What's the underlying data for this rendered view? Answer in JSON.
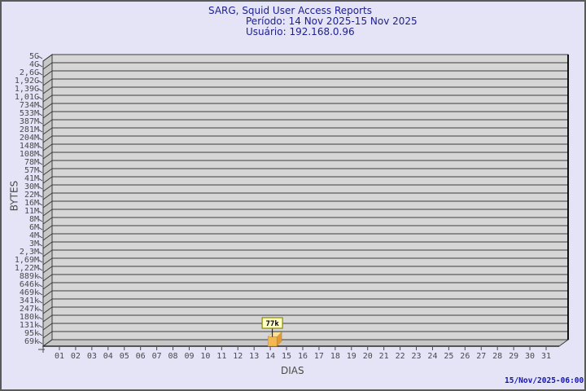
{
  "header": {
    "title": "SARG, Squid User Access Reports",
    "period_line": "Período: 14 Nov 2025-15 Nov 2025",
    "user_line": "Usuário: 192.168.0.96"
  },
  "footer": {
    "timestamp": "15/Nov/2025-06:00"
  },
  "chart_data": {
    "type": "bar",
    "title": "SARG, Squid User Access Reports",
    "subtitle": "Período: 14 Nov 2025-15 Nov 2025 | Usuário: 192.168.0.96",
    "xlabel": "DIAS",
    "ylabel": "BYTES",
    "x_categories": [
      "01",
      "02",
      "03",
      "04",
      "05",
      "06",
      "07",
      "08",
      "09",
      "10",
      "11",
      "12",
      "13",
      "14",
      "15",
      "16",
      "17",
      "18",
      "19",
      "20",
      "21",
      "22",
      "23",
      "24",
      "25",
      "26",
      "27",
      "28",
      "29",
      "30",
      "31"
    ],
    "y_scale": "log",
    "y_min_value": 69000,
    "y_max_value": 5000000000,
    "y_tick_labels": [
      "5G",
      "4G",
      "2,6G",
      "1,92G",
      "1,39G",
      "1,01G",
      "734M",
      "533M",
      "387M",
      "281M",
      "204M",
      "148M",
      "108M",
      "78M",
      "57M",
      "41M",
      "30M",
      "22M",
      "16M",
      "11M",
      "8M",
      "6M",
      "4M",
      "3M",
      "2,3M",
      "1,69M",
      "1,22M",
      "889k",
      "646k",
      "469k",
      "341k",
      "247k",
      "180k",
      "131k",
      "95k",
      "69k"
    ],
    "grid": true,
    "legend": false,
    "bars": [
      {
        "category": "14",
        "value": 77000,
        "label": "77k"
      }
    ]
  },
  "colors": {
    "background": "#e4e4f6",
    "title_text": "#202090",
    "timestamp_text": "#1212b6",
    "plot_fill": "#d6d6d6",
    "wall_fill": "#c7c7c7",
    "gridline": "#3d3d3d",
    "axis_text": "#4a4a4a",
    "bar_top": "#fbdf9b",
    "bar_front": "#f2b854",
    "bar_side": "#e09a36",
    "callout_bg": "#ffffc8",
    "callout_border": "#8b8b00",
    "callout_text": "#000000"
  }
}
